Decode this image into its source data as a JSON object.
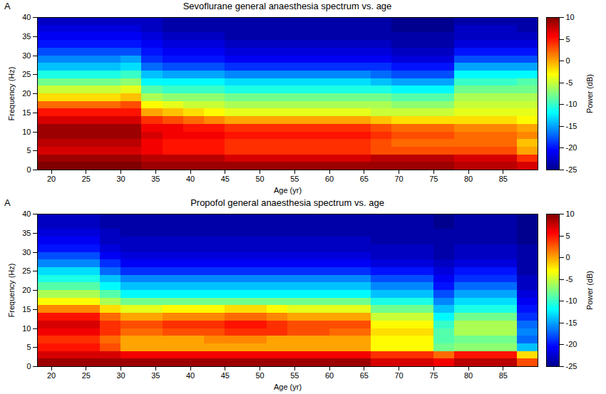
{
  "chart_data": [
    {
      "type": "heatmap",
      "panel_label": "A",
      "title": "Sevoflurane general anaesthesia spectrum vs. age",
      "xlabel": "Age (yr)",
      "ylabel": "Frequency (Hz)",
      "color": "jet",
      "xlim": [
        18,
        90
      ],
      "xticks": [
        20,
        25,
        30,
        35,
        40,
        45,
        50,
        55,
        60,
        65,
        70,
        75,
        80,
        85
      ],
      "ylim": [
        0,
        40
      ],
      "yticks": [
        0,
        5,
        10,
        15,
        20,
        25,
        30,
        35,
        40
      ],
      "x_bins": [
        18,
        21,
        24,
        27,
        30,
        33,
        36,
        39,
        42,
        45,
        48,
        51,
        54,
        57,
        60,
        63,
        66,
        69,
        72,
        75,
        78,
        81,
        84,
        87,
        90
      ],
      "y_bins": [
        0,
        2,
        4,
        6,
        8,
        10,
        12,
        14,
        16,
        18,
        20,
        22,
        24,
        26,
        28,
        30,
        32,
        34,
        36,
        38,
        40
      ],
      "values": [
        [
          10,
          10,
          10,
          10,
          10,
          9,
          9,
          9,
          9,
          9,
          9,
          9,
          9,
          9,
          9,
          9,
          9,
          9,
          9,
          9,
          8,
          8,
          8,
          7
        ],
        [
          9,
          9,
          9,
          9,
          9,
          8,
          8,
          8,
          8,
          7,
          7,
          7,
          7,
          7,
          7,
          7,
          8,
          8,
          8,
          8,
          7,
          7,
          7,
          4
        ],
        [
          7,
          7,
          7,
          7,
          7,
          6,
          5,
          5,
          5,
          4,
          4,
          4,
          4,
          4,
          4,
          4,
          3,
          3,
          3,
          3,
          3,
          3,
          3,
          0
        ],
        [
          8,
          8,
          8,
          8,
          8,
          6,
          5,
          5,
          5,
          4,
          4,
          4,
          4,
          4,
          4,
          4,
          3,
          2,
          2,
          2,
          2,
          2,
          2,
          -1
        ],
        [
          9,
          9,
          9,
          9,
          9,
          7,
          6,
          6,
          6,
          5,
          5,
          5,
          5,
          5,
          5,
          5,
          4,
          3,
          3,
          3,
          2,
          2,
          2,
          1
        ],
        [
          9,
          9,
          9,
          9,
          9,
          6,
          6,
          5,
          5,
          4,
          4,
          4,
          4,
          4,
          4,
          4,
          3,
          2,
          2,
          2,
          1,
          1,
          1,
          0
        ],
        [
          7,
          7,
          7,
          7,
          7,
          4,
          3,
          2,
          1,
          0,
          0,
          0,
          0,
          0,
          0,
          0,
          -1,
          -2,
          -2,
          -2,
          -2,
          -2,
          -2,
          -3
        ],
        [
          5,
          5,
          5,
          5,
          5,
          0,
          -1,
          -2,
          -3,
          -4,
          -4,
          -4,
          -4,
          -4,
          -4,
          -4,
          -5,
          -5,
          -5,
          -5,
          -4,
          -4,
          -4,
          -4
        ],
        [
          2,
          2,
          2,
          2,
          3,
          -3,
          -4,
          -5,
          -5,
          -6,
          -6,
          -6,
          -6,
          -6,
          -6,
          -6,
          -6,
          -7,
          -7,
          -7,
          -5,
          -5,
          -5,
          -5
        ],
        [
          -2,
          -2,
          -2,
          -2,
          -1,
          -6,
          -7,
          -7,
          -7,
          -8,
          -8,
          -8,
          -8,
          -8,
          -8,
          -8,
          -8,
          -9,
          -9,
          -9,
          -6,
          -6,
          -6,
          -6
        ],
        [
          -5,
          -5,
          -5,
          -5,
          -4,
          -9,
          -10,
          -10,
          -10,
          -11,
          -11,
          -11,
          -11,
          -11,
          -11,
          -11,
          -11,
          -12,
          -12,
          -12,
          -8,
          -8,
          -8,
          -8
        ],
        [
          -8,
          -8,
          -8,
          -8,
          -7,
          -12,
          -12,
          -12,
          -12,
          -13,
          -13,
          -13,
          -13,
          -13,
          -13,
          -13,
          -14,
          -15,
          -15,
          -15,
          -10,
          -10,
          -10,
          -9
        ],
        [
          -11,
          -11,
          -11,
          -11,
          -10,
          -14,
          -15,
          -15,
          -15,
          -16,
          -16,
          -16,
          -16,
          -16,
          -16,
          -16,
          -17,
          -18,
          -18,
          -18,
          -12,
          -12,
          -12,
          -12
        ],
        [
          -14,
          -14,
          -14,
          -14,
          -13,
          -17,
          -18,
          -18,
          -18,
          -19,
          -19,
          -19,
          -19,
          -19,
          -19,
          -19,
          -19,
          -20,
          -20,
          -20,
          -15,
          -15,
          -15,
          -15
        ],
        [
          -16,
          -16,
          -16,
          -16,
          -15,
          -19,
          -20,
          -20,
          -20,
          -21,
          -21,
          -21,
          -21,
          -21,
          -21,
          -21,
          -21,
          -22,
          -22,
          -22,
          -18,
          -18,
          -18,
          -18
        ],
        [
          -18,
          -18,
          -18,
          -18,
          -18,
          -20,
          -21,
          -21,
          -21,
          -22,
          -22,
          -22,
          -22,
          -22,
          -22,
          -22,
          -22,
          -23,
          -23,
          -23,
          -20,
          -20,
          -20,
          -20
        ],
        [
          -20,
          -20,
          -20,
          -20,
          -20,
          -21,
          -22,
          -22,
          -22,
          -23,
          -23,
          -23,
          -23,
          -23,
          -23,
          -23,
          -23,
          -24,
          -24,
          -24,
          -22,
          -22,
          -22,
          -22
        ],
        [
          -21,
          -21,
          -21,
          -21,
          -21,
          -22,
          -23,
          -23,
          -23,
          -24,
          -24,
          -24,
          -24,
          -24,
          -24,
          -24,
          -24,
          -24,
          -24,
          -24,
          -23,
          -23,
          -23,
          -23
        ],
        [
          -22,
          -22,
          -22,
          -22,
          -22,
          -23,
          -24,
          -24,
          -24,
          -24,
          -24,
          -24,
          -24,
          -24,
          -24,
          -24,
          -24,
          -25,
          -25,
          -25,
          -23,
          -23,
          -23,
          -24
        ],
        [
          -23,
          -23,
          -23,
          -23,
          -23,
          -23,
          -24,
          -24,
          -24,
          -24,
          -24,
          -24,
          -24,
          -24,
          -24,
          -24,
          -24,
          -25,
          -25,
          -25,
          -24,
          -24,
          -24,
          -24
        ]
      ],
      "colorbar": {
        "label": "Power (dB)",
        "lim": [
          -25,
          10
        ],
        "ticks": [
          -25,
          -20,
          -15,
          -10,
          -5,
          0,
          5,
          10
        ]
      }
    },
    {
      "type": "heatmap",
      "panel_label": "A",
      "title": "Propofol general anaesthesia spectrum vs. age",
      "xlabel": "Age (yr)",
      "ylabel": "Frequency (Hz)",
      "color": "jet",
      "xlim": [
        18,
        90
      ],
      "xticks": [
        20,
        25,
        30,
        35,
        40,
        45,
        50,
        55,
        60,
        65,
        70,
        75,
        80,
        85
      ],
      "ylim": [
        0,
        40
      ],
      "yticks": [
        0,
        5,
        10,
        15,
        20,
        25,
        30,
        35,
        40
      ],
      "x_bins": [
        18,
        21,
        24,
        27,
        30,
        33,
        36,
        39,
        42,
        45,
        48,
        51,
        54,
        57,
        60,
        63,
        66,
        69,
        72,
        75,
        78,
        81,
        84,
        87,
        90
      ],
      "y_bins": [
        0,
        2,
        4,
        6,
        8,
        10,
        12,
        14,
        16,
        18,
        20,
        22,
        24,
        26,
        28,
        30,
        32,
        34,
        36,
        38,
        40
      ],
      "values": [
        [
          9,
          9,
          9,
          9,
          9,
          9,
          9,
          9,
          9,
          9,
          9,
          9,
          9,
          9,
          9,
          9,
          7,
          7,
          7,
          6,
          8,
          8,
          8,
          3
        ],
        [
          7,
          7,
          7,
          7,
          6,
          6,
          6,
          6,
          6,
          6,
          6,
          6,
          6,
          6,
          6,
          6,
          4,
          4,
          4,
          2,
          5,
          5,
          5,
          -2
        ],
        [
          5,
          5,
          5,
          3,
          0,
          0,
          0,
          0,
          0,
          0,
          0,
          0,
          0,
          0,
          0,
          0,
          -3,
          -3,
          -3,
          -8,
          -7,
          -7,
          -7,
          -14
        ],
        [
          4,
          4,
          4,
          2,
          0,
          0,
          0,
          0,
          1,
          1,
          1,
          0,
          0,
          0,
          0,
          0,
          -3,
          -3,
          -3,
          -9,
          -8,
          -8,
          -8,
          -17
        ],
        [
          6,
          6,
          6,
          4,
          2,
          2,
          3,
          3,
          3,
          4,
          4,
          4,
          3,
          3,
          2,
          2,
          -2,
          -2,
          -2,
          -9,
          -6,
          -6,
          -6,
          -16
        ],
        [
          7,
          7,
          7,
          4,
          3,
          3,
          4,
          4,
          4,
          5,
          5,
          4,
          3,
          3,
          3,
          3,
          -3,
          -3,
          -3,
          -10,
          -6,
          -6,
          -6,
          -17
        ],
        [
          5,
          5,
          5,
          2,
          0,
          0,
          1,
          1,
          1,
          2,
          2,
          1,
          0,
          0,
          0,
          0,
          -5,
          -5,
          -5,
          -12,
          -8,
          -8,
          -8,
          -19
        ],
        [
          1,
          1,
          1,
          -2,
          -4,
          -4,
          -3,
          -3,
          -3,
          -2,
          -2,
          -3,
          -4,
          -4,
          -4,
          -4,
          -8,
          -8,
          -8,
          -14,
          -11,
          -11,
          -11,
          -20
        ],
        [
          -3,
          -3,
          -3,
          -6,
          -8,
          -8,
          -8,
          -8,
          -8,
          -8,
          -8,
          -8,
          -8,
          -8,
          -8,
          -8,
          -11,
          -11,
          -11,
          -16,
          -13,
          -13,
          -13,
          -21
        ],
        [
          -6,
          -6,
          -6,
          -9,
          -12,
          -12,
          -12,
          -12,
          -12,
          -12,
          -12,
          -12,
          -12,
          -12,
          -12,
          -12,
          -14,
          -14,
          -14,
          -18,
          -15,
          -15,
          -15,
          -22
        ],
        [
          -9,
          -9,
          -9,
          -12,
          -14,
          -14,
          -14,
          -14,
          -14,
          -14,
          -14,
          -14,
          -14,
          -14,
          -14,
          -14,
          -16,
          -16,
          -16,
          -20,
          -17,
          -17,
          -17,
          -23
        ],
        [
          -11,
          -11,
          -11,
          -14,
          -16,
          -16,
          -16,
          -16,
          -16,
          -16,
          -16,
          -16,
          -16,
          -16,
          -16,
          -16,
          -18,
          -18,
          -18,
          -21,
          -19,
          -19,
          -19,
          -23
        ],
        [
          -13,
          -13,
          -13,
          -17,
          -19,
          -19,
          -19,
          -19,
          -19,
          -19,
          -19,
          -19,
          -19,
          -19,
          -19,
          -19,
          -20,
          -20,
          -20,
          -22,
          -20,
          -20,
          -20,
          -24
        ],
        [
          -16,
          -16,
          -16,
          -19,
          -21,
          -21,
          -21,
          -21,
          -21,
          -21,
          -21,
          -21,
          -21,
          -21,
          -21,
          -21,
          -22,
          -22,
          -22,
          -23,
          -22,
          -22,
          -22,
          -24
        ],
        [
          -18,
          -18,
          -18,
          -21,
          -22,
          -22,
          -22,
          -22,
          -22,
          -22,
          -22,
          -22,
          -22,
          -22,
          -22,
          -22,
          -23,
          -23,
          -23,
          -24,
          -23,
          -23,
          -23,
          -24
        ],
        [
          -20,
          -20,
          -20,
          -22,
          -23,
          -23,
          -23,
          -23,
          -23,
          -23,
          -23,
          -23,
          -23,
          -23,
          -23,
          -23,
          -23,
          -23,
          -23,
          -24,
          -23,
          -23,
          -23,
          -24
        ],
        [
          -21,
          -21,
          -21,
          -23,
          -23,
          -23,
          -23,
          -23,
          -23,
          -23,
          -23,
          -23,
          -23,
          -23,
          -23,
          -23,
          -24,
          -24,
          -24,
          -24,
          -24,
          -24,
          -24,
          -25
        ],
        [
          -22,
          -22,
          -22,
          -23,
          -24,
          -24,
          -24,
          -24,
          -24,
          -24,
          -24,
          -24,
          -24,
          -24,
          -24,
          -24,
          -24,
          -24,
          -24,
          -24,
          -24,
          -24,
          -24,
          -25
        ],
        [
          -23,
          -23,
          -23,
          -24,
          -24,
          -24,
          -24,
          -24,
          -24,
          -24,
          -24,
          -24,
          -24,
          -24,
          -24,
          -24,
          -24,
          -24,
          -24,
          -25,
          -24,
          -24,
          -24,
          -25
        ],
        [
          -23,
          -23,
          -23,
          -24,
          -24,
          -24,
          -24,
          -24,
          -24,
          -24,
          -24,
          -24,
          -24,
          -24,
          -24,
          -24,
          -24,
          -24,
          -24,
          -25,
          -24,
          -24,
          -24,
          -25
        ]
      ],
      "colorbar": {
        "label": "Power (dB)",
        "lim": [
          -25,
          10
        ],
        "ticks": [
          -25,
          -20,
          -15,
          -10,
          -5,
          0,
          5,
          10
        ]
      }
    }
  ]
}
